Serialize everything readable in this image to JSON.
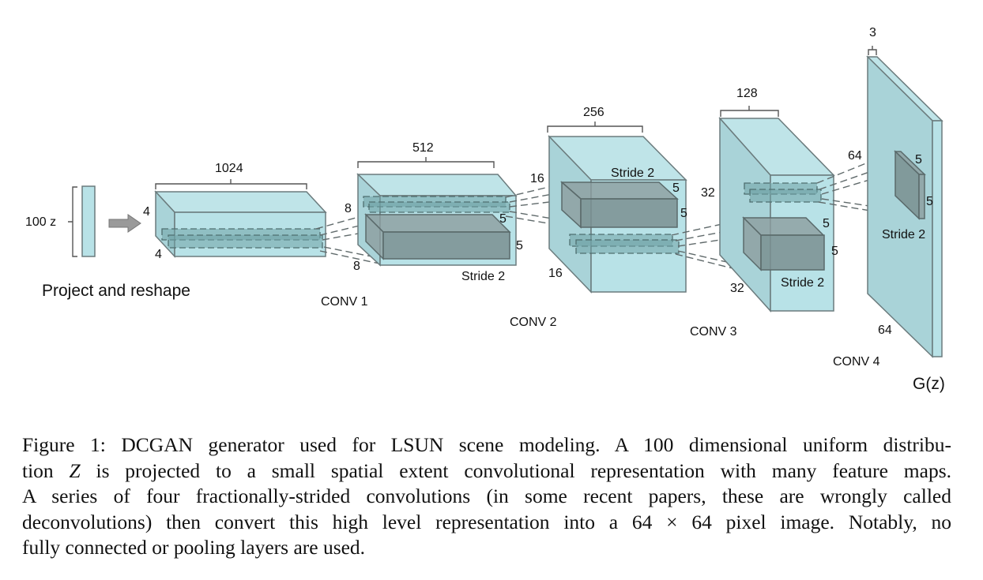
{
  "figure": {
    "input_label": "100 z",
    "project_label": "Project and reshape",
    "layers": [
      {
        "name": "",
        "channels": "1024",
        "height": "4",
        "width": "4"
      },
      {
        "name": "CONV 1",
        "channels": "512",
        "height": "8",
        "width": "8",
        "kernel_h": "5",
        "kernel_w": "5",
        "stride": "Stride 2"
      },
      {
        "name": "CONV 2",
        "channels": "256",
        "height": "16",
        "width": "16",
        "kernel_h": "5",
        "kernel_w": "5",
        "stride": "Stride 2"
      },
      {
        "name": "CONV 3",
        "channels": "128",
        "height": "32",
        "width": "32",
        "kernel_h": "5",
        "kernel_w": "5",
        "stride": "Stride 2"
      },
      {
        "name": "CONV 4",
        "channels": "3",
        "height": "64",
        "width": "64",
        "kernel_h": "5",
        "kernel_w": "5",
        "stride": "Stride 2"
      }
    ],
    "output_label": "G(z)",
    "colors": {
      "volume": "#b0dfe4",
      "kernel": "#7a8f90",
      "edge": "#6b7b7d"
    }
  },
  "caption": {
    "line1": "Figure 1: DCGAN generator used for LSUN scene modeling. A 100 dimensional uniform distribu-",
    "line2_pre": "tion ",
    "line2_var": "Z",
    "line2_post": " is projected to a small spatial extent convolutional representation with many feature maps.",
    "line3": "A series of four fractionally-strided convolutions (in some recent papers, these are wrongly called",
    "line4": "deconvolutions) then convert this high level representation into a 64 × 64 pixel image. Notably, no",
    "line5": "fully connected or pooling layers are used."
  }
}
